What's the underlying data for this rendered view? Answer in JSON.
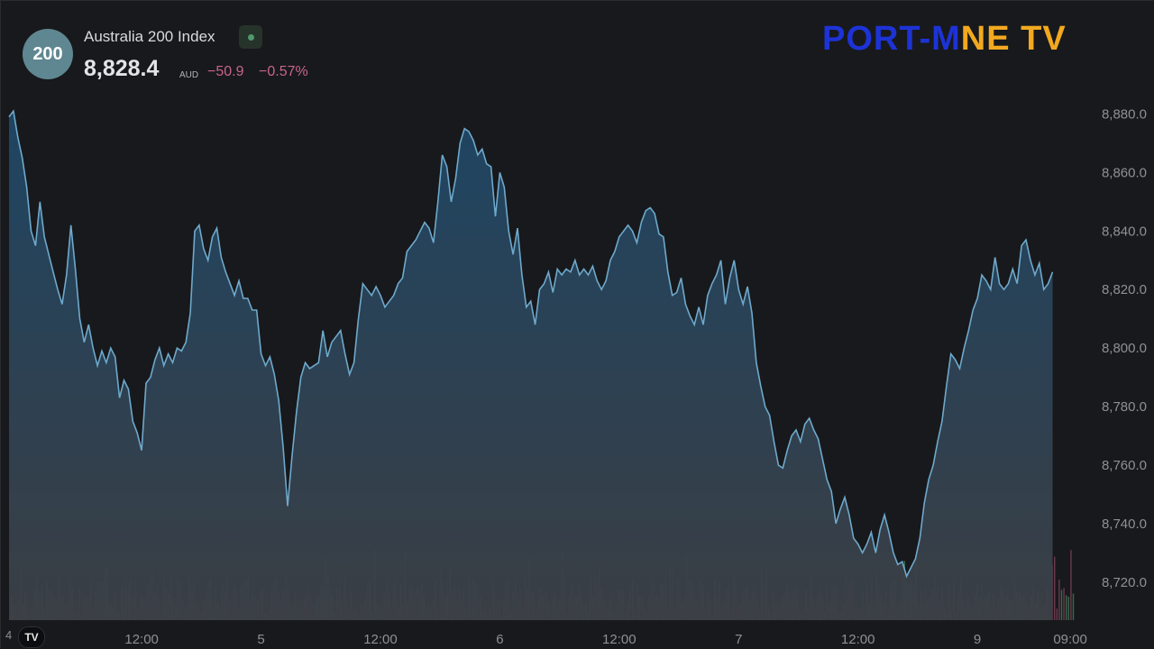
{
  "header": {
    "symbol_badge": "200",
    "instrument_name": "Australia 200 Index",
    "price": "8,828.4",
    "currency": "AUD",
    "change": "−50.9",
    "change_pct": "−0.57%",
    "market_status": "open",
    "status_color": "#4f9a6b"
  },
  "brand": {
    "part1": "PORT-M",
    "part2": "NE",
    "part3": " TV",
    "color_main": "#1d33d6",
    "color_accent": "#f2a91f"
  },
  "chart_data": {
    "type": "area",
    "series_name": "",
    "line_color": "#6ea9cc",
    "ylim": [
      8707,
      8882
    ],
    "yticks": [
      8720,
      8740,
      8760,
      8780,
      8800,
      8820,
      8840,
      8860,
      8880
    ],
    "ytick_labels": [
      "8,720.0",
      "8,740.0",
      "8,760.0",
      "8,780.0",
      "8,800.0",
      "8,820.0",
      "8,840.0",
      "8,860.0",
      "8,880.0"
    ],
    "xticks": [
      {
        "label": "12:00",
        "t": 30
      },
      {
        "label": "5",
        "t": 57
      },
      {
        "label": "12:00",
        "t": 84
      },
      {
        "label": "6",
        "t": 111
      },
      {
        "label": "12:00",
        "t": 138
      },
      {
        "label": "7",
        "t": 165
      },
      {
        "label": "12:00",
        "t": 192
      },
      {
        "label": "9",
        "t": 219
      },
      {
        "label": "09:00",
        "t": 240
      }
    ],
    "xlim": [
      0,
      241
    ],
    "points": [
      [
        0,
        8879
      ],
      [
        1,
        8881
      ],
      [
        2,
        8872
      ],
      [
        3,
        8865
      ],
      [
        4,
        8855
      ],
      [
        5,
        8840
      ],
      [
        6,
        8835
      ],
      [
        7,
        8850
      ],
      [
        8,
        8838
      ],
      [
        9,
        8832
      ],
      [
        10,
        8826
      ],
      [
        11,
        8820
      ],
      [
        12,
        8815
      ],
      [
        13,
        8825
      ],
      [
        14,
        8842
      ],
      [
        15,
        8827
      ],
      [
        16,
        8810
      ],
      [
        17,
        8802
      ],
      [
        18,
        8808
      ],
      [
        19,
        8800
      ],
      [
        20,
        8794
      ],
      [
        21,
        8799
      ],
      [
        22,
        8795
      ],
      [
        23,
        8800
      ],
      [
        24,
        8797
      ],
      [
        25,
        8783
      ],
      [
        26,
        8789
      ],
      [
        27,
        8786
      ],
      [
        28,
        8775
      ],
      [
        29,
        8771
      ],
      [
        30,
        8765
      ],
      [
        31,
        8788
      ],
      [
        32,
        8790
      ],
      [
        33,
        8796
      ],
      [
        34,
        8800
      ],
      [
        35,
        8794
      ],
      [
        36,
        8798
      ],
      [
        37,
        8795
      ],
      [
        38,
        8800
      ],
      [
        39,
        8799
      ],
      [
        40,
        8802
      ],
      [
        41,
        8812
      ],
      [
        42,
        8840
      ],
      [
        43,
        8842
      ],
      [
        44,
        8834
      ],
      [
        45,
        8830
      ],
      [
        46,
        8838
      ],
      [
        47,
        8841
      ],
      [
        48,
        8831
      ],
      [
        49,
        8826
      ],
      [
        50,
        8822
      ],
      [
        51,
        8818
      ],
      [
        52,
        8823
      ],
      [
        53,
        8817
      ],
      [
        54,
        8817
      ],
      [
        55,
        8813
      ],
      [
        56,
        8813
      ],
      [
        57,
        8798
      ],
      [
        58,
        8794
      ],
      [
        59,
        8797
      ],
      [
        60,
        8791
      ],
      [
        61,
        8782
      ],
      [
        62,
        8766
      ],
      [
        63,
        8746
      ],
      [
        64,
        8763
      ],
      [
        65,
        8778
      ],
      [
        66,
        8790
      ],
      [
        67,
        8795
      ],
      [
        68,
        8793
      ],
      [
        69,
        8794
      ],
      [
        70,
        8795
      ],
      [
        71,
        8806
      ],
      [
        72,
        8797
      ],
      [
        73,
        8802
      ],
      [
        74,
        8804
      ],
      [
        75,
        8806
      ],
      [
        76,
        8798
      ],
      [
        77,
        8791
      ],
      [
        78,
        8795
      ],
      [
        79,
        8810
      ],
      [
        80,
        8822
      ],
      [
        81,
        8820
      ],
      [
        82,
        8818
      ],
      [
        83,
        8821
      ],
      [
        84,
        8818
      ],
      [
        85,
        8814
      ],
      [
        86,
        8816
      ],
      [
        87,
        8818
      ],
      [
        88,
        8822
      ],
      [
        89,
        8824
      ],
      [
        90,
        8833
      ],
      [
        91,
        8835
      ],
      [
        92,
        8837
      ],
      [
        93,
        8840
      ],
      [
        94,
        8843
      ],
      [
        95,
        8841
      ],
      [
        96,
        8836
      ],
      [
        97,
        8850
      ],
      [
        98,
        8866
      ],
      [
        99,
        8862
      ],
      [
        100,
        8850
      ],
      [
        101,
        8858
      ],
      [
        102,
        8870
      ],
      [
        103,
        8875
      ],
      [
        104,
        8874
      ],
      [
        105,
        8871
      ],
      [
        106,
        8866
      ],
      [
        107,
        8868
      ],
      [
        108,
        8863
      ],
      [
        109,
        8862
      ],
      [
        110,
        8845
      ],
      [
        111,
        8860
      ],
      [
        112,
        8855
      ],
      [
        113,
        8840
      ],
      [
        114,
        8832
      ],
      [
        115,
        8841
      ],
      [
        116,
        8825
      ],
      [
        117,
        8814
      ],
      [
        118,
        8816
      ],
      [
        119,
        8808
      ],
      [
        120,
        8820
      ],
      [
        121,
        8822
      ],
      [
        122,
        8826
      ],
      [
        123,
        8819
      ],
      [
        124,
        8827
      ],
      [
        125,
        8825
      ],
      [
        126,
        8827
      ],
      [
        127,
        8826
      ],
      [
        128,
        8830
      ],
      [
        129,
        8825
      ],
      [
        130,
        8827
      ],
      [
        131,
        8825
      ],
      [
        132,
        8828
      ],
      [
        133,
        8823
      ],
      [
        134,
        8820
      ],
      [
        135,
        8823
      ],
      [
        136,
        8830
      ],
      [
        137,
        8833
      ],
      [
        138,
        8838
      ],
      [
        139,
        8840
      ],
      [
        140,
        8842
      ],
      [
        141,
        8840
      ],
      [
        142,
        8836
      ],
      [
        143,
        8843
      ],
      [
        144,
        8847
      ],
      [
        145,
        8848
      ],
      [
        146,
        8846
      ],
      [
        147,
        8839
      ],
      [
        148,
        8838
      ],
      [
        149,
        8826
      ],
      [
        150,
        8818
      ],
      [
        151,
        8819
      ],
      [
        152,
        8824
      ],
      [
        153,
        8815
      ],
      [
        154,
        8811
      ],
      [
        155,
        8808
      ],
      [
        156,
        8814
      ],
      [
        157,
        8808
      ],
      [
        158,
        8818
      ],
      [
        159,
        8822
      ],
      [
        160,
        8825
      ],
      [
        161,
        8830
      ],
      [
        162,
        8815
      ],
      [
        163,
        8824
      ],
      [
        164,
        8830
      ],
      [
        165,
        8820
      ],
      [
        166,
        8815
      ],
      [
        167,
        8821
      ],
      [
        168,
        8812
      ],
      [
        169,
        8795
      ],
      [
        170,
        8787
      ],
      [
        171,
        8780
      ],
      [
        172,
        8777
      ],
      [
        173,
        8768
      ],
      [
        174,
        8760
      ],
      [
        175,
        8759
      ],
      [
        176,
        8765
      ],
      [
        177,
        8770
      ],
      [
        178,
        8772
      ],
      [
        179,
        8768
      ],
      [
        180,
        8774
      ],
      [
        181,
        8776
      ],
      [
        182,
        8772
      ],
      [
        183,
        8769
      ],
      [
        184,
        8762
      ],
      [
        185,
        8755
      ],
      [
        186,
        8751
      ],
      [
        187,
        8740
      ],
      [
        188,
        8745
      ],
      [
        189,
        8749
      ],
      [
        190,
        8743
      ],
      [
        191,
        8735
      ],
      [
        192,
        8733
      ],
      [
        193,
        8730
      ],
      [
        194,
        8733
      ],
      [
        195,
        8737
      ],
      [
        196,
        8730
      ],
      [
        197,
        8738
      ],
      [
        198,
        8743
      ],
      [
        199,
        8737
      ],
      [
        200,
        8730
      ],
      [
        201,
        8726
      ],
      [
        202,
        8727
      ],
      [
        203,
        8722
      ],
      [
        204,
        8725
      ],
      [
        205,
        8728
      ],
      [
        206,
        8735
      ],
      [
        207,
        8747
      ],
      [
        208,
        8755
      ],
      [
        209,
        8760
      ],
      [
        210,
        8768
      ],
      [
        211,
        8775
      ],
      [
        212,
        8787
      ],
      [
        213,
        8798
      ],
      [
        214,
        8796
      ],
      [
        215,
        8793
      ],
      [
        216,
        8800
      ],
      [
        217,
        8806
      ],
      [
        218,
        8813
      ],
      [
        219,
        8817
      ],
      [
        220,
        8825
      ],
      [
        221,
        8823
      ],
      [
        222,
        8820
      ],
      [
        223,
        8831
      ],
      [
        224,
        8822
      ],
      [
        225,
        8820
      ],
      [
        226,
        8822
      ],
      [
        227,
        8827
      ],
      [
        228,
        8822
      ],
      [
        229,
        8835
      ],
      [
        230,
        8837
      ],
      [
        231,
        8830
      ],
      [
        232,
        8825
      ],
      [
        233,
        8829
      ],
      [
        234,
        8820
      ],
      [
        235,
        8822
      ],
      [
        236,
        8826
      ]
    ]
  }
}
